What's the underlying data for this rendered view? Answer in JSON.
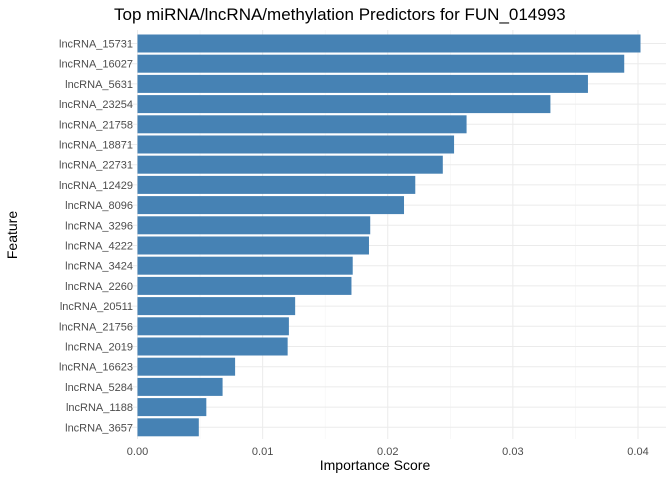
{
  "chart_data": {
    "type": "bar",
    "orientation": "horizontal",
    "title": "Top miRNA/lncRNA/methylation Predictors for FUN_014993",
    "xlabel": "Importance Score",
    "ylabel": "Feature",
    "xlim": [
      0,
      0.0402
    ],
    "x_ticks": [
      "0.00",
      "0.01",
      "0.02",
      "0.03",
      "0.04"
    ],
    "x_tick_values": [
      0,
      0.01,
      0.02,
      0.03,
      0.04
    ],
    "grid": true,
    "bar_color": "#4682B4",
    "categories": [
      "lncRNA_15731",
      "lncRNA_16027",
      "lncRNA_5631",
      "lncRNA_23254",
      "lncRNA_21758",
      "lncRNA_18871",
      "lncRNA_22731",
      "lncRNA_12429",
      "lncRNA_8096",
      "lncRNA_3296",
      "lncRNA_4222",
      "lncRNA_3424",
      "lncRNA_2260",
      "lncRNA_20511",
      "lncRNA_21756",
      "lncRNA_2019",
      "lncRNA_16623",
      "lncRNA_5284",
      "lncRNA_1188",
      "lncRNA_3657"
    ],
    "values": [
      0.0402,
      0.0389,
      0.036,
      0.033,
      0.0263,
      0.0253,
      0.0244,
      0.0222,
      0.0213,
      0.0186,
      0.0185,
      0.0172,
      0.0171,
      0.0126,
      0.0121,
      0.012,
      0.0078,
      0.0068,
      0.0055,
      0.0049
    ]
  }
}
